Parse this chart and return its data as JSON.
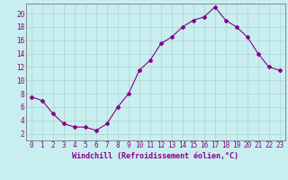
{
  "x": [
    0,
    1,
    2,
    3,
    4,
    5,
    6,
    7,
    8,
    9,
    10,
    11,
    12,
    13,
    14,
    15,
    16,
    17,
    18,
    19,
    20,
    21,
    22,
    23
  ],
  "y": [
    7.5,
    7.0,
    5.0,
    3.5,
    3.0,
    3.0,
    2.5,
    3.5,
    6.0,
    8.0,
    11.5,
    13.0,
    15.5,
    16.5,
    18.0,
    19.0,
    19.5,
    21.0,
    19.0,
    18.0,
    16.5,
    14.0,
    12.0,
    11.5
  ],
  "line_color": "#880088",
  "marker": "D",
  "marker_size": 2.0,
  "bg_color": "#c8eef0",
  "grid_color": "#aacccc",
  "xlabel": "Windchill (Refroidissement éolien,°C)",
  "xlim": [
    -0.5,
    23.5
  ],
  "ylim": [
    1,
    21.5
  ],
  "yticks": [
    2,
    4,
    6,
    8,
    10,
    12,
    14,
    16,
    18,
    20
  ],
  "xticks": [
    0,
    1,
    2,
    3,
    4,
    5,
    6,
    7,
    8,
    9,
    10,
    11,
    12,
    13,
    14,
    15,
    16,
    17,
    18,
    19,
    20,
    21,
    22,
    23
  ],
  "tick_color": "#880088",
  "label_fontsize": 5.5,
  "xlabel_fontsize": 6.0,
  "axis_color": "#880088",
  "spine_color": "#666666"
}
